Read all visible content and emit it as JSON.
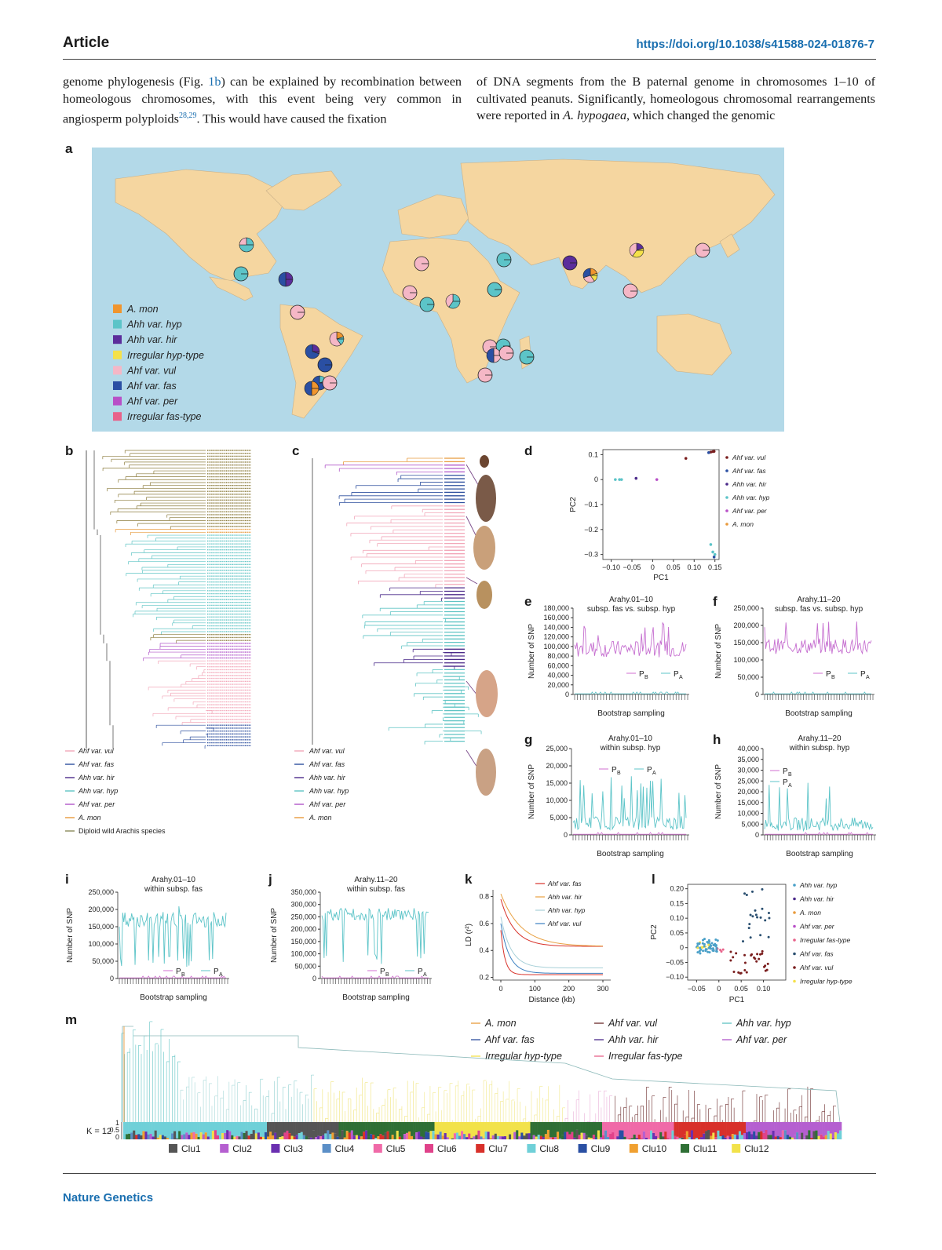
{
  "header": {
    "article": "Article",
    "doi": "https://doi.org/10.1038/s41588-024-01876-7"
  },
  "body_text": {
    "left_column": {
      "before_ref": "genome phylogenesis (Fig. ",
      "ref": "1b",
      "after_ref": ") can be explained by recombination between homeologous chromosomes, with this event being very common in angiosperm polyploids",
      "citation": "28,29",
      "after_citation": ". This would have caused the fixation"
    },
    "right_column": {
      "before_italic": "of DNA segments from the B paternal genome in chromosomes 1–10 of cultivated peanuts. Significantly, homeologous chromosomal rearrangements were reported in ",
      "italic": "A. hypogaea",
      "after_italic": ", which changed the genomic"
    }
  },
  "panels": {
    "a": "a",
    "b": "b",
    "c": "c",
    "d": "d",
    "e": "e",
    "f": "f",
    "g": "g",
    "h": "h",
    "i": "i",
    "j": "j",
    "k": "k",
    "l": "l",
    "m": "m"
  },
  "colors": {
    "ocean": "#b3d9e8",
    "land": "#f5d6a0",
    "a_mon": "#f0952e",
    "ahh_hyp": "#5cc4c8",
    "ahh_hir": "#5b2d9b",
    "irr_hyp": "#f5e14a",
    "ahf_vul": "#f5b7c6",
    "ahf_fas": "#2a4fa3",
    "ahf_per": "#b84fc7",
    "irr_fas": "#e8628a",
    "vul_line": "#f2a7b9",
    "fas_line": "#2d4f9e",
    "hir_line": "#4b2a8a",
    "hyp_line": "#5fc4c4",
    "per_line": "#b056c9",
    "mon_line": "#e89a3c",
    "diploid_line": "#8a8a5a",
    "pb": "#d16fd0",
    "pa": "#5cc4c8"
  },
  "map_legend": [
    "A. mon",
    "Ahh var. hyp",
    "Ahh var. hir",
    "Irregular hyp-type",
    "Ahf var. vul",
    "Ahf var. fas",
    "Ahf var. per",
    "Irregular fas-type"
  ],
  "tree_b_legend": [
    "Ahf var. vul",
    "Ahf var. fas",
    "Ahh var. hir",
    "Ahh var. hyp",
    "Ahf var. per",
    "A. mon",
    "Diploid wild Arachis species"
  ],
  "tree_c_legend": [
    "Ahf var. vul",
    "Ahf var. fas",
    "Ahh var. hir",
    "Ahh var. hyp",
    "Ahf var. per",
    "A. mon"
  ],
  "panel_d": {
    "xlabel": "PC1",
    "ylabel": "PC2",
    "xticks": [
      "−0.10",
      "−0.05",
      "0",
      "0.05",
      "0.10",
      "0.15"
    ],
    "yticks": [
      "0.1",
      "0",
      "−0.1",
      "−0.2",
      "−0.3"
    ],
    "legend": [
      "Ahf var. vul",
      "Ahf var. fas",
      "Ahh var. hir",
      "Ahh var. hyp",
      "Ahf var. per",
      "A. mon"
    ]
  },
  "snp_panels": {
    "e": {
      "title1": "Arahy.01–10",
      "title2": "subsp. fas vs. subsp. hyp",
      "yticks": [
        "180,000",
        "160,000",
        "140,000",
        "120,000",
        "100,000",
        "80,000",
        "60,000",
        "40,000",
        "20,000",
        "0"
      ],
      "ymax": 180000,
      "ylabel": "Number of SNP",
      "xlabel": "Bootstrap sampling",
      "pb": "P",
      "pa": "P"
    },
    "f": {
      "title1": "Arahy.11–20",
      "title2": "subsp. fas vs. subsp. hyp",
      "yticks": [
        "250,000",
        "200,000",
        "150,000",
        "100,000",
        "50,000",
        "0"
      ],
      "ymax": 250000,
      "ylabel": "Number of SNP",
      "xlabel": "Bootstrap sampling",
      "pb": "P",
      "pa": "P"
    },
    "g": {
      "title1": "Arahy.01–10",
      "title2": "within subsp. hyp",
      "yticks": [
        "25,000",
        "20,000",
        "15,000",
        "10,000",
        "5,000",
        "0"
      ],
      "ymax": 25000,
      "ylabel": "Number of SNP",
      "xlabel": "Bootstrap sampling",
      "pb": "P",
      "pa": "P"
    },
    "h": {
      "title1": "Arahy.11–20",
      "title2": "within subsp. hyp",
      "yticks": [
        "40,000",
        "35,000",
        "30,000",
        "25,000",
        "20,000",
        "15,000",
        "10,000",
        "5,000",
        "0"
      ],
      "ymax": 40000,
      "ylabel": "Number of SNP",
      "xlabel": "Bootstrap sampling",
      "pb": "P",
      "pa": "P"
    },
    "i": {
      "title1": "Arahy.01–10",
      "title2": "within subsp. fas",
      "yticks": [
        "250,000",
        "200,000",
        "150,000",
        "100,000",
        "50,000",
        "0"
      ],
      "ymax": 250000,
      "ylabel": "Number of SNP",
      "xlabel": "Bootstrap sampling",
      "pb": "P",
      "pa": "P"
    },
    "j": {
      "title1": "Arahy.11–20",
      "title2": "within subsp. fas",
      "yticks": [
        "350,000",
        "300,000",
        "250,000",
        "200,000",
        "150,000",
        "100,000",
        "50,000",
        "0"
      ],
      "ymax": 350000,
      "ylabel": "Number of SNP",
      "xlabel": "Bootstrap sampling",
      "pb": "P",
      "pa": "P"
    }
  },
  "panel_k": {
    "xlabel": "Distance (kb)",
    "ylabel": "LD (r²)",
    "xticks": [
      "0",
      "100",
      "200",
      "300"
    ],
    "yticks": [
      "0.8",
      "0.6",
      "0.4",
      "0.2"
    ],
    "legend": [
      "Ahf var. fas",
      "Ahh var. hir",
      "Ahh var. hyp",
      "Ahf var. vul"
    ]
  },
  "panel_l": {
    "xlabel": "PC1",
    "ylabel": "PC2",
    "xticks": [
      "−0.05",
      "0",
      "0.05",
      "0.10"
    ],
    "yticks": [
      "0.20",
      "0.15",
      "0.10",
      "0.05",
      "0",
      "−0.05",
      "−0.10"
    ],
    "legend": [
      "Ahh var. hyp",
      "Ahh var. hir",
      "A. mon",
      "Ahf var. per",
      "Irregular fas-type",
      "Ahf var. fas",
      "Ahf var. vul",
      "Irregular hyp-type"
    ]
  },
  "panel_m": {
    "legend": [
      "A. mon",
      "Ahf var. vul",
      "Ahh var. hyp",
      "Ahf var. fas",
      "Ahh var. hir",
      "Ahf var. per",
      "Irregular hyp-type",
      "Irregular fas-type"
    ],
    "k_label": "K = 12",
    "axis_ticks": [
      "1",
      "0.5",
      "0"
    ],
    "clusters": [
      "Clu1",
      "Clu2",
      "Clu3",
      "Clu4",
      "Clu5",
      "Clu6",
      "Clu7",
      "Clu8",
      "Clu9",
      "Clu10",
      "Clu11",
      "Clu12"
    ],
    "cluster_colors": [
      "#555555",
      "#b55fd0",
      "#6a2fb0",
      "#5b8fc7",
      "#f06aa8",
      "#e0428a",
      "#d8302a",
      "#6fd0d8",
      "#2a4fa3",
      "#f0a030",
      "#2f6f35",
      "#f2e24a"
    ]
  },
  "footer": {
    "journal": "Nature Genetics"
  }
}
